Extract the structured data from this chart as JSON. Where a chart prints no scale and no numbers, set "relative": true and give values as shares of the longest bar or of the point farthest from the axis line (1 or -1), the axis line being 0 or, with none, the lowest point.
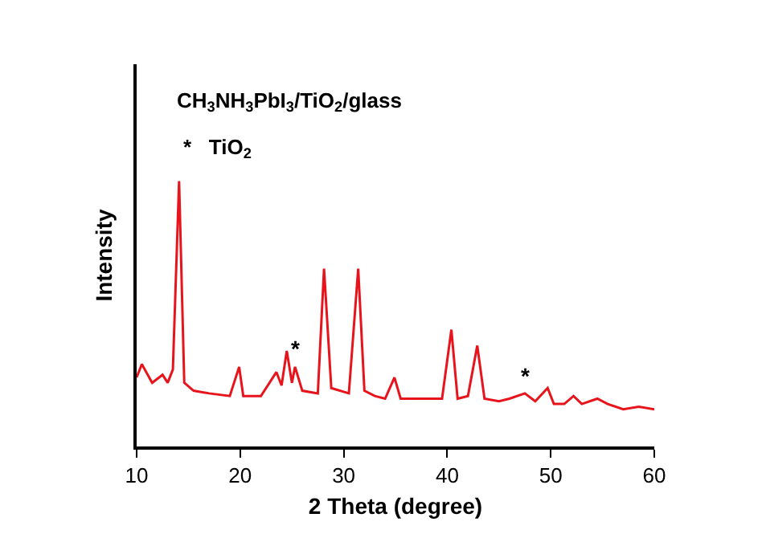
{
  "chart_data": {
    "type": "line",
    "relative": true,
    "xlabel": "2 Theta (degree)",
    "ylabel": "Intensity",
    "x": [
      10,
      10.5,
      11.5,
      12.5,
      13,
      13.5,
      14.1,
      14.6,
      15.5,
      17,
      19,
      19.9,
      20.3,
      22,
      23.5,
      24,
      24.5,
      25,
      25.3,
      26,
      27.5,
      28.1,
      28.8,
      30.5,
      31.4,
      32,
      33,
      34,
      34.9,
      35.5,
      37,
      38,
      39.5,
      40.4,
      41,
      42,
      42.9,
      43.6,
      45,
      46,
      47.5,
      48.5,
      49.7,
      50.3,
      51.3,
      52.2,
      53,
      54.5,
      55.5,
      57,
      58.5,
      60
    ],
    "series": [
      {
        "color": "#e8141c",
        "values": [
          0.26,
          0.31,
          0.24,
          0.27,
          0.24,
          0.29,
          1.0,
          0.24,
          0.21,
          0.2,
          0.19,
          0.3,
          0.19,
          0.19,
          0.28,
          0.23,
          0.36,
          0.24,
          0.3,
          0.21,
          0.2,
          0.67,
          0.22,
          0.2,
          0.67,
          0.21,
          0.19,
          0.18,
          0.26,
          0.18,
          0.18,
          0.18,
          0.18,
          0.44,
          0.18,
          0.19,
          0.38,
          0.18,
          0.17,
          0.18,
          0.2,
          0.17,
          0.22,
          0.16,
          0.16,
          0.19,
          0.16,
          0.18,
          0.16,
          0.14,
          0.15,
          0.14
        ]
      }
    ],
    "xlim": [
      10,
      60
    ],
    "xticks": [
      10,
      20,
      30,
      40,
      50,
      60
    ],
    "grid": false,
    "marker": "none",
    "line_style": "solid",
    "annotations": [
      "CH$_{3}$NH$_{3}$PbI$_{3}$/TiO$_{2}$/glass",
      "*   TiO$_{2}$",
      {
        "text": "*",
        "x": 25.3,
        "y": 0.3
      },
      {
        "text": "*",
        "x": 47.5,
        "y": 0.2
      }
    ]
  }
}
